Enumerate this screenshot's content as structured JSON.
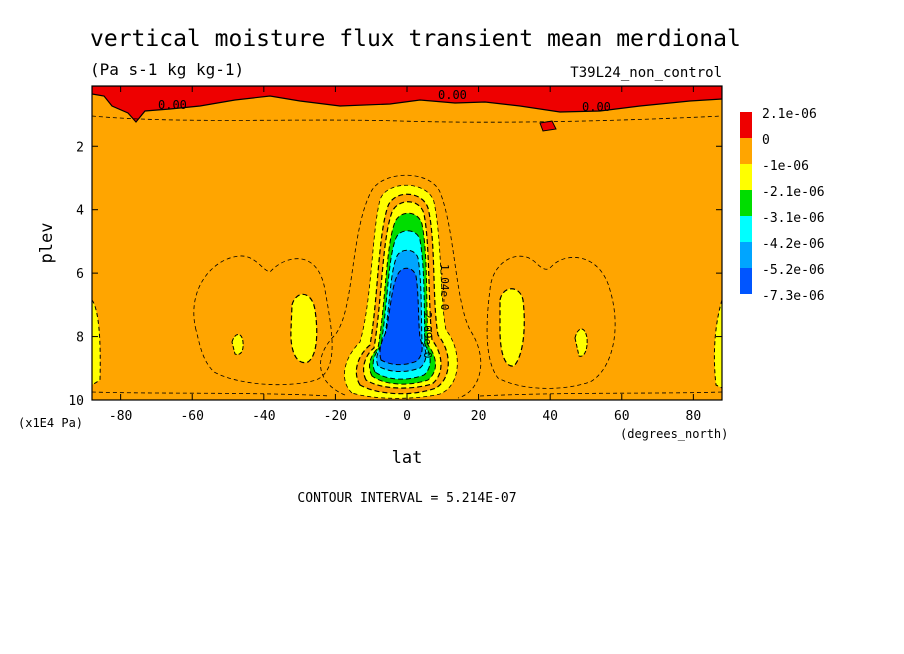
{
  "chart_data": {
    "type": "heatmap",
    "title": "vertical moisture flux transient mean merdional",
    "units": "(Pa s-1 kg kg-1)",
    "run_label": "T39L24_non_control",
    "xlabel": "lat",
    "xunits": "(degrees_north)",
    "ylabel": "plev",
    "yunits": "(x1E4 Pa)",
    "xlim": [
      -88,
      88
    ],
    "ylim": [
      10,
      0.1
    ],
    "x_ticks": [
      -80,
      -60,
      -40,
      -20,
      0,
      20,
      40,
      60,
      80
    ],
    "y_ticks": [
      2,
      4,
      6,
      8,
      10
    ],
    "contour_interval_text": "CONTOUR INTERVAL = 5.214E-07",
    "legend": {
      "placement": "right",
      "levels": [
        {
          "label": "2.1e-06",
          "color": "#ee0000"
        },
        {
          "label": "0",
          "color": "#ffa500"
        },
        {
          "label": "-1e-06",
          "color": "#ffff00"
        },
        {
          "label": "-2.1e-06",
          "color": "#00dd00"
        },
        {
          "label": "-3.1e-06",
          "color": "#00ffff"
        },
        {
          "label": "-4.2e-06",
          "color": "#00a5ff"
        },
        {
          "label": "-5.2e-06",
          "color": "#0055ff"
        },
        {
          "label": "-7.3e-06",
          "color": ""
        }
      ]
    },
    "contour_labels": [
      "0.00",
      "0.00",
      "0.00",
      "1.04e-0",
      "2.09e-0"
    ]
  }
}
